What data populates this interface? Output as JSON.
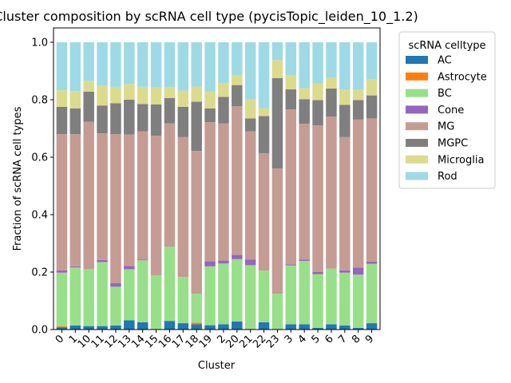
{
  "chart_data": {
    "type": "bar",
    "stacked": true,
    "title": "Cluster composition by scRNA cell type (pycisTopic_leiden_10_1.2)",
    "xlabel": "Cluster",
    "ylabel": "Fraction of scRNA cell types",
    "ylim": [
      0,
      1.05
    ],
    "yticks": [
      "0.0",
      "0.2",
      "0.4",
      "0.6",
      "0.8",
      "1.0"
    ],
    "legend_title": "scRNA celltype",
    "legend_position": "outside-right",
    "grid": false,
    "categories": [
      "0",
      "1",
      "10",
      "11",
      "12",
      "13",
      "14",
      "15",
      "16",
      "17",
      "18",
      "19",
      "2",
      "20",
      "21",
      "22",
      "23",
      "3",
      "4",
      "5",
      "6",
      "7",
      "8",
      "9"
    ],
    "series": [
      {
        "name": "AC",
        "color": "#1f77b4",
        "values": [
          0.008,
          0.014,
          0.012,
          0.012,
          0.014,
          0.032,
          0.025,
          0.002,
          0.03,
          0.022,
          0.018,
          0.015,
          0.018,
          0.028,
          0.002,
          0.025,
          0.002,
          0.018,
          0.018,
          0.006,
          0.018,
          0.014,
          0.006,
          0.022
        ]
      },
      {
        "name": "Astrocyte",
        "color": "#ff7f0e",
        "values": [
          0.003,
          0,
          0,
          0,
          0,
          0,
          0,
          0,
          0,
          0,
          0.006,
          0,
          0,
          0,
          0,
          0,
          0,
          0,
          0,
          0,
          0,
          0,
          0,
          0
        ]
      },
      {
        "name": "BC",
        "color": "#98df8a",
        "values": [
          0.187,
          0.202,
          0.198,
          0.223,
          0.135,
          0.178,
          0.216,
          0.187,
          0.258,
          0.161,
          0.101,
          0.205,
          0.212,
          0.217,
          0.222,
          0.18,
          0.123,
          0.205,
          0.221,
          0.187,
          0.194,
          0.184,
          0.185,
          0.207
        ]
      },
      {
        "name": "Cone",
        "color": "#9467bd",
        "values": [
          0.008,
          0.004,
          0,
          0.007,
          0.013,
          0.011,
          0.002,
          0,
          0,
          0,
          0,
          0.018,
          0.01,
          0.015,
          0.02,
          0,
          0,
          0.004,
          0.004,
          0.008,
          0,
          0.008,
          0.025,
          0.008
        ]
      },
      {
        "name": "MG",
        "color": "#c49c94",
        "values": [
          0.474,
          0.46,
          0.513,
          0.441,
          0.518,
          0.458,
          0.447,
          0.486,
          0.43,
          0.487,
          0.497,
          0.484,
          0.478,
          0.517,
          0.446,
          0.409,
          0.436,
          0.539,
          0.473,
          0.51,
          0.529,
          0.464,
          0.515,
          0.498
        ]
      },
      {
        "name": "MGPC",
        "color": "#7f7f7f",
        "values": [
          0.095,
          0.09,
          0.105,
          0.097,
          0.108,
          0.121,
          0.095,
          0.109,
          0.088,
          0.105,
          0.171,
          0.048,
          0.092,
          0.074,
          0.045,
          0.129,
          0.314,
          0.07,
          0.086,
          0.088,
          0.098,
          0.112,
          0.068,
          0.08
        ]
      },
      {
        "name": "Microglia",
        "color": "#dbdb8d",
        "values": [
          0.058,
          0.06,
          0.038,
          0.07,
          0.057,
          0.055,
          0.06,
          0.058,
          0.038,
          0.057,
          0.053,
          0.058,
          0.048,
          0.034,
          0.066,
          0.027,
          0.063,
          0.05,
          0.038,
          0.058,
          0.037,
          0.053,
          0.035,
          0.056
        ]
      },
      {
        "name": "Rod",
        "color": "#9edae5",
        "values": [
          0.167,
          0.17,
          0.134,
          0.15,
          0.155,
          0.145,
          0.155,
          0.158,
          0.156,
          0.168,
          0.154,
          0.172,
          0.142,
          0.115,
          0.199,
          0.23,
          0.062,
          0.114,
          0.16,
          0.143,
          0.124,
          0.165,
          0.166,
          0.129
        ]
      }
    ]
  }
}
